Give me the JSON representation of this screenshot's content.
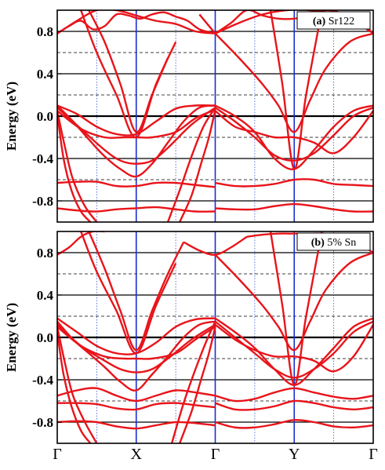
{
  "chart_data": [
    {
      "type": "line",
      "panel_label": "(a)",
      "title": "Sr122",
      "ylabel": "Energy (eV)",
      "ylim": [
        -1.0,
        1.0
      ],
      "yticks": [
        -0.8,
        -0.4,
        0.0,
        0.4,
        0.8
      ],
      "ytick_labels": [
        "-0.8",
        "-0.4",
        "0.0",
        "0.4",
        "0.8"
      ],
      "dashed_levels": [
        -0.6,
        -0.2,
        0.2,
        0.6
      ],
      "k_points": [
        "Γ",
        "X",
        "Γ",
        "Y",
        "Γ"
      ],
      "k_ticks": [
        0,
        1,
        2,
        3,
        4
      ],
      "line_color": "#e8141a",
      "series": [
        {
          "x": [
            0,
            0.25,
            0.5,
            0.75,
            1,
            1.25,
            1.5,
            1.75,
            2
          ],
          "y": [
            0.1,
            0.02,
            -0.1,
            -0.17,
            -0.17,
            -0.05,
            0.07,
            0.1,
            0.1
          ]
        },
        {
          "x": [
            0,
            0.2,
            0.4,
            0.6,
            0.8,
            1,
            1.2,
            1.4,
            1.6,
            1.8,
            2
          ],
          "y": [
            0.1,
            -0.05,
            -0.22,
            -0.38,
            -0.5,
            -0.57,
            -0.45,
            -0.25,
            -0.05,
            0.08,
            0.1
          ]
        },
        {
          "x": [
            0,
            0.3,
            0.6,
            0.8,
            1,
            1.2,
            1.4,
            1.7,
            2
          ],
          "y": [
            0.08,
            -0.12,
            -0.32,
            -0.42,
            -0.45,
            -0.42,
            -0.3,
            -0.08,
            0.08
          ]
        },
        {
          "x": [
            0,
            0.3,
            0.6,
            0.85,
            1,
            1.2,
            1.5,
            1.75,
            2
          ],
          "y": [
            0.05,
            -0.12,
            -0.2,
            -0.2,
            -0.2,
            -0.2,
            -0.15,
            -0.02,
            0.06
          ]
        },
        {
          "x": [
            0,
            0.25,
            0.5,
            0.75,
            1,
            1.25,
            1.5,
            1.75,
            2
          ],
          "y": [
            -0.63,
            -0.62,
            -0.62,
            -0.66,
            -0.66,
            -0.63,
            -0.63,
            -0.65,
            -0.67
          ]
        },
        {
          "x": [
            0,
            0.25,
            0.5,
            0.75,
            1,
            1.25,
            1.5,
            1.75,
            2
          ],
          "y": [
            -0.87,
            -0.89,
            -0.9,
            -0.88,
            -0.87,
            -0.86,
            -0.88,
            -0.9,
            -0.9
          ]
        },
        {
          "x": [
            0,
            0.1,
            0.2,
            0.35,
            0.5
          ],
          "y": [
            0.05,
            -0.3,
            -0.6,
            -0.85,
            -1.0
          ]
        },
        {
          "x": [
            0,
            0.08,
            0.18,
            0.3,
            0.42
          ],
          "y": [
            0.03,
            -0.4,
            -0.7,
            -0.9,
            -1.0
          ]
        },
        {
          "x": [
            1.4,
            1.55,
            1.7,
            1.85,
            2
          ],
          "y": [
            -1.0,
            -0.7,
            -0.38,
            -0.1,
            0.08
          ]
        },
        {
          "x": [
            1.55,
            1.7,
            1.82,
            1.92,
            2
          ],
          "y": [
            -1.0,
            -0.75,
            -0.45,
            -0.2,
            0.06
          ]
        },
        {
          "x": [
            0,
            0.25,
            0.5,
            0.75,
            1,
            1.25,
            1.5,
            1.75,
            2
          ],
          "y": [
            0.78,
            0.9,
            1.0,
            1.0,
            0.95,
            0.9,
            0.87,
            0.8,
            0.78
          ]
        },
        {
          "x": [
            0,
            0.15,
            0.3,
            0.45,
            0.6,
            0.75,
            0.9,
            1.05,
            1.2,
            1.35,
            1.5,
            1.65,
            1.8,
            2
          ],
          "y": [
            0.78,
            0.85,
            0.9,
            0.82,
            0.85,
            0.96,
            0.95,
            0.92,
            0.96,
            0.98,
            0.94,
            0.9,
            0.82,
            0.78
          ]
        },
        {
          "x": [
            0.4,
            0.6,
            0.8,
            1,
            1.2,
            1.4
          ],
          "y": [
            1.0,
            0.7,
            0.3,
            -0.15,
            0.2,
            0.55
          ]
        },
        {
          "x": [
            0.3,
            0.5,
            0.75,
            1,
            1.25,
            1.5
          ],
          "y": [
            1.0,
            0.6,
            0.2,
            -0.2,
            0.3,
            0.7
          ]
        },
        {
          "x": [
            1.8,
            2
          ],
          "y": [
            0.96,
            0.78
          ]
        },
        {
          "x": [
            2,
            2.25,
            2.5,
            2.75,
            3,
            3.25,
            3.5,
            3.75,
            4
          ],
          "y": [
            0.1,
            0.0,
            -0.15,
            -0.4,
            -0.5,
            -0.32,
            -0.1,
            0.05,
            0.1
          ]
        },
        {
          "x": [
            2,
            2.25,
            2.5,
            2.75,
            3,
            3.25,
            3.5,
            3.75,
            4
          ],
          "y": [
            0.08,
            -0.05,
            -0.2,
            -0.37,
            -0.42,
            -0.35,
            -0.18,
            0.0,
            0.08
          ]
        },
        {
          "x": [
            2,
            2.25,
            2.5,
            2.75,
            3,
            3.25,
            3.5,
            3.75,
            4
          ],
          "y": [
            0.05,
            -0.1,
            -0.15,
            -0.2,
            -0.2,
            -0.25,
            -0.35,
            -0.2,
            0.05
          ]
        },
        {
          "x": [
            2,
            2.25,
            2.5,
            2.75,
            3,
            3.25,
            3.5,
            3.75,
            4
          ],
          "y": [
            -0.63,
            -0.66,
            -0.66,
            -0.64,
            -0.6,
            -0.6,
            -0.64,
            -0.65,
            -0.66
          ]
        },
        {
          "x": [
            2,
            2.25,
            2.5,
            2.75,
            3,
            3.25,
            3.5,
            3.75,
            4
          ],
          "y": [
            -0.87,
            -0.88,
            -0.88,
            -0.85,
            -0.83,
            -0.85,
            -0.88,
            -0.9,
            -0.9
          ]
        },
        {
          "x": [
            2,
            2.3,
            2.6,
            2.8,
            3,
            3.2,
            3.4,
            3.7,
            4
          ],
          "y": [
            0.78,
            0.55,
            0.3,
            0.1,
            -0.15,
            0.15,
            0.45,
            0.7,
            0.78
          ]
        },
        {
          "x": [
            2,
            2.2,
            2.4,
            2.6,
            2.8,
            3,
            3.2,
            3.4,
            3.6,
            3.8,
            4
          ],
          "y": [
            0.78,
            0.88,
            1.0,
            0.95,
            0.92,
            0.92,
            0.95,
            1.0,
            0.97,
            0.88,
            0.78
          ]
        },
        {
          "x": [
            2.7,
            2.85,
            3,
            3.15,
            3.35
          ],
          "y": [
            1.0,
            0.3,
            -0.5,
            0.2,
            1.0
          ]
        },
        {
          "x": [
            2,
            2.3,
            2.6,
            2.9,
            3.2,
            3.5,
            3.8,
            4
          ],
          "y": [
            0.78,
            0.88,
            0.96,
            1.0,
            1.0,
            0.96,
            0.9,
            0.78
          ]
        }
      ]
    },
    {
      "type": "line",
      "panel_label": "(b)",
      "title": "5% Sn",
      "ylabel": "Energy (eV)",
      "ylim": [
        -1.0,
        1.0
      ],
      "yticks": [
        -0.8,
        -0.4,
        0.0,
        0.4,
        0.8
      ],
      "ytick_labels": [
        "-0.8",
        "-0.4",
        "0.0",
        "0.4",
        "0.8"
      ],
      "dashed_levels": [
        -0.6,
        -0.2,
        0.2,
        0.6
      ],
      "k_points": [
        "Γ",
        "X",
        "Γ",
        "Y",
        "Γ"
      ],
      "k_ticks": [
        0,
        1,
        2,
        3,
        4
      ],
      "line_color": "#e8141a",
      "series": [
        {
          "x": [
            0,
            0.25,
            0.5,
            0.75,
            1,
            1.25,
            1.5,
            1.75,
            2
          ],
          "y": [
            0.18,
            0.05,
            -0.08,
            -0.15,
            -0.15,
            -0.05,
            0.1,
            0.17,
            0.18
          ]
        },
        {
          "x": [
            0,
            0.2,
            0.4,
            0.6,
            0.8,
            1,
            1.2,
            1.4,
            1.6,
            1.8,
            2
          ],
          "y": [
            0.15,
            -0.02,
            -0.15,
            -0.28,
            -0.42,
            -0.5,
            -0.35,
            -0.18,
            0.0,
            0.12,
            0.15
          ]
        },
        {
          "x": [
            0,
            0.3,
            0.6,
            0.8,
            1,
            1.2,
            1.4,
            1.7,
            2
          ],
          "y": [
            0.12,
            -0.08,
            -0.22,
            -0.3,
            -0.33,
            -0.3,
            -0.2,
            -0.02,
            0.12
          ]
        },
        {
          "x": [
            0,
            0.3,
            0.6,
            0.85,
            1,
            1.2,
            1.5,
            1.75,
            2
          ],
          "y": [
            0.1,
            -0.08,
            -0.18,
            -0.2,
            -0.2,
            -0.2,
            -0.15,
            -0.02,
            0.1
          ]
        },
        {
          "x": [
            0,
            0.25,
            0.5,
            0.75,
            1,
            1.25,
            1.5,
            1.75,
            2
          ],
          "y": [
            -0.55,
            -0.5,
            -0.48,
            -0.55,
            -0.6,
            -0.55,
            -0.5,
            -0.52,
            -0.55
          ]
        },
        {
          "x": [
            0,
            0.25,
            0.5,
            0.75,
            1,
            1.25,
            1.5,
            1.75,
            2
          ],
          "y": [
            -0.62,
            -0.62,
            -0.63,
            -0.67,
            -0.68,
            -0.63,
            -0.62,
            -0.64,
            -0.66
          ]
        },
        {
          "x": [
            0,
            0.25,
            0.5,
            0.75,
            1,
            1.25,
            1.5,
            1.75,
            2
          ],
          "y": [
            -0.8,
            -0.79,
            -0.8,
            -0.84,
            -0.86,
            -0.83,
            -0.8,
            -0.81,
            -0.83
          ]
        },
        {
          "x": [
            0,
            0.1,
            0.2,
            0.35,
            0.5
          ],
          "y": [
            0.1,
            -0.25,
            -0.55,
            -0.8,
            -1.0
          ]
        },
        {
          "x": [
            0,
            0.08,
            0.18,
            0.3,
            0.42
          ],
          "y": [
            0.05,
            -0.35,
            -0.65,
            -0.88,
            -1.0
          ]
        },
        {
          "x": [
            1.45,
            1.6,
            1.75,
            1.88,
            2
          ],
          "y": [
            -1.0,
            -0.62,
            -0.3,
            -0.05,
            0.15
          ]
        },
        {
          "x": [
            1.55,
            1.7,
            1.82,
            1.92,
            2
          ],
          "y": [
            -1.0,
            -0.7,
            -0.4,
            -0.15,
            0.1
          ]
        },
        {
          "x": [
            0,
            0.15,
            0.3,
            0.45,
            0.6
          ],
          "y": [
            0.78,
            0.85,
            0.95,
            1.0,
            1.0
          ]
        },
        {
          "x": [
            0.4,
            0.6,
            0.8,
            1,
            1.2,
            1.4,
            1.6
          ],
          "y": [
            1.0,
            0.65,
            0.25,
            -0.12,
            0.25,
            0.6,
            0.9
          ]
        },
        {
          "x": [
            0.3,
            0.5,
            0.75,
            1,
            1.25,
            1.5
          ],
          "y": [
            1.0,
            0.62,
            0.25,
            -0.15,
            0.3,
            0.7
          ]
        },
        {
          "x": [
            1.6,
            1.8,
            2,
            2.2,
            2.4
          ],
          "y": [
            0.9,
            0.82,
            0.78,
            0.85,
            0.95
          ]
        },
        {
          "x": [
            2,
            2.25,
            2.5,
            2.75,
            3,
            3.25,
            3.5,
            3.75,
            4
          ],
          "y": [
            0.18,
            0.05,
            -0.1,
            -0.3,
            -0.45,
            -0.3,
            -0.1,
            0.1,
            0.18
          ]
        },
        {
          "x": [
            2,
            2.25,
            2.5,
            2.75,
            3,
            3.25,
            3.5,
            3.75,
            4
          ],
          "y": [
            0.15,
            0.0,
            -0.15,
            -0.3,
            -0.38,
            -0.3,
            -0.15,
            0.05,
            0.15
          ]
        },
        {
          "x": [
            2,
            2.25,
            2.5,
            2.75,
            3,
            3.25,
            3.5,
            3.75,
            4
          ],
          "y": [
            0.12,
            -0.02,
            -0.12,
            -0.18,
            -0.18,
            -0.22,
            -0.32,
            -0.18,
            0.12
          ]
        },
        {
          "x": [
            2,
            2.25,
            2.5,
            2.75,
            3,
            3.25,
            3.5,
            3.75,
            4
          ],
          "y": [
            -0.55,
            -0.6,
            -0.58,
            -0.52,
            -0.48,
            -0.52,
            -0.56,
            -0.58,
            -0.55
          ]
        },
        {
          "x": [
            2,
            2.25,
            2.5,
            2.75,
            3,
            3.25,
            3.5,
            3.75,
            4
          ],
          "y": [
            -0.62,
            -0.68,
            -0.68,
            -0.65,
            -0.6,
            -0.62,
            -0.66,
            -0.68,
            -0.66
          ]
        },
        {
          "x": [
            2,
            2.25,
            2.5,
            2.75,
            3,
            3.25,
            3.5,
            3.75,
            4
          ],
          "y": [
            -0.8,
            -0.85,
            -0.85,
            -0.82,
            -0.78,
            -0.8,
            -0.84,
            -0.85,
            -0.83
          ]
        },
        {
          "x": [
            2,
            2.3,
            2.6,
            2.8,
            3,
            3.2,
            3.4,
            3.7,
            4
          ],
          "y": [
            0.78,
            0.55,
            0.3,
            0.1,
            -0.12,
            0.15,
            0.45,
            0.7,
            0.8
          ]
        },
        {
          "x": [
            2.4,
            2.6,
            2.8,
            3,
            3.2,
            3.4,
            3.6,
            3.8
          ],
          "y": [
            0.95,
            0.97,
            0.98,
            0.98,
            0.98,
            0.98,
            0.96,
            0.92
          ]
        },
        {
          "x": [
            2.7,
            2.85,
            3,
            3.15,
            3.35
          ],
          "y": [
            1.0,
            0.3,
            -0.45,
            0.2,
            1.0
          ]
        },
        {
          "x": [
            3.8,
            3.9,
            4
          ],
          "y": [
            0.92,
            0.85,
            0.8
          ]
        }
      ]
    }
  ]
}
